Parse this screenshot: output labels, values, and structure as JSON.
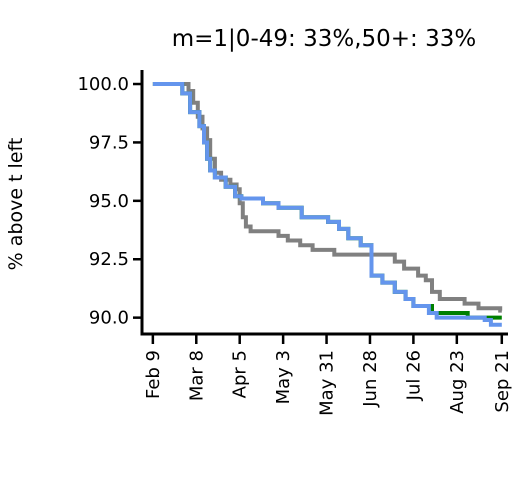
{
  "chart_data": {
    "type": "line",
    "title": "m=1|0-49: 33%,50+: 33%",
    "xlabel": "",
    "ylabel": "% above t left",
    "x_axis": "date",
    "xlim": [
      "2020-02-02",
      "2020-09-25"
    ],
    "ylim": [
      89.3,
      100.6
    ],
    "yticks": [
      {
        "value": 100.0,
        "label": "100.0"
      },
      {
        "value": 97.5,
        "label": "97.5"
      },
      {
        "value": 95.0,
        "label": "95.0"
      },
      {
        "value": 92.5,
        "label": "92.5"
      },
      {
        "value": 90.0,
        "label": "90.0"
      }
    ],
    "xticks": [
      {
        "value": "2020-02-09",
        "label": "Feb 9"
      },
      {
        "value": "2020-03-08",
        "label": "Mar 8"
      },
      {
        "value": "2020-04-05",
        "label": "Apr 5"
      },
      {
        "value": "2020-05-03",
        "label": "May 3"
      },
      {
        "value": "2020-05-31",
        "label": "May 31"
      },
      {
        "value": "2020-06-28",
        "label": "Jun 28"
      },
      {
        "value": "2020-07-26",
        "label": "Jul 26"
      },
      {
        "value": "2020-08-23",
        "label": "Aug 23"
      },
      {
        "value": "2020-09-21",
        "label": "Sep 21"
      }
    ],
    "grid": false,
    "legend": "none",
    "series": [
      {
        "color": "#808080",
        "step": true,
        "points": [
          [
            "2020-02-09",
            100.0
          ],
          [
            "2020-02-28",
            100.0
          ],
          [
            "2020-03-03",
            99.7
          ],
          [
            "2020-03-06",
            99.2
          ],
          [
            "2020-03-09",
            98.6
          ],
          [
            "2020-03-12",
            98.1
          ],
          [
            "2020-03-15",
            97.6
          ],
          [
            "2020-03-17",
            96.8
          ],
          [
            "2020-03-20",
            96.2
          ],
          [
            "2020-03-24",
            95.9
          ],
          [
            "2020-03-30",
            95.7
          ],
          [
            "2020-04-03",
            95.5
          ],
          [
            "2020-04-05",
            94.9
          ],
          [
            "2020-04-07",
            94.3
          ],
          [
            "2020-04-09",
            93.9
          ],
          [
            "2020-04-12",
            93.7
          ],
          [
            "2020-04-30",
            93.5
          ],
          [
            "2020-05-06",
            93.3
          ],
          [
            "2020-05-14",
            93.1
          ],
          [
            "2020-05-22",
            92.9
          ],
          [
            "2020-06-05",
            92.7
          ],
          [
            "2020-07-14",
            92.4
          ],
          [
            "2020-07-20",
            92.1
          ],
          [
            "2020-07-29",
            91.8
          ],
          [
            "2020-08-03",
            91.6
          ],
          [
            "2020-08-07",
            91.1
          ],
          [
            "2020-08-12",
            90.8
          ],
          [
            "2020-08-28",
            90.6
          ],
          [
            "2020-09-06",
            90.4
          ],
          [
            "2020-09-20",
            90.3
          ],
          [
            "2020-09-21",
            90.3
          ]
        ]
      },
      {
        "color": "#008000",
        "step": true,
        "points": [
          [
            "2020-02-09",
            100.0
          ],
          [
            "2020-02-25",
            100.0
          ],
          [
            "2020-02-28",
            99.6
          ],
          [
            "2020-03-04",
            98.8
          ],
          [
            "2020-03-10",
            98.2
          ],
          [
            "2020-03-13",
            97.5
          ],
          [
            "2020-03-15",
            96.8
          ],
          [
            "2020-03-17",
            96.3
          ],
          [
            "2020-03-20",
            96.0
          ],
          [
            "2020-03-27",
            95.6
          ],
          [
            "2020-04-02",
            95.2
          ],
          [
            "2020-04-06",
            95.1
          ],
          [
            "2020-04-20",
            94.9
          ],
          [
            "2020-04-30",
            94.7
          ],
          [
            "2020-05-15",
            94.3
          ],
          [
            "2020-06-01",
            94.1
          ],
          [
            "2020-06-08",
            93.8
          ],
          [
            "2020-06-14",
            93.4
          ],
          [
            "2020-06-22",
            93.1
          ],
          [
            "2020-06-29",
            91.8
          ],
          [
            "2020-07-06",
            91.5
          ],
          [
            "2020-07-14",
            91.1
          ],
          [
            "2020-07-21",
            90.8
          ],
          [
            "2020-07-26",
            90.5
          ],
          [
            "2020-08-07",
            90.2
          ],
          [
            "2020-08-30",
            90.0
          ],
          [
            "2020-09-21",
            90.0
          ]
        ]
      },
      {
        "color": "#6495ED",
        "step": true,
        "points": [
          [
            "2020-02-09",
            100.0
          ],
          [
            "2020-02-25",
            100.0
          ],
          [
            "2020-02-28",
            99.6
          ],
          [
            "2020-03-04",
            98.8
          ],
          [
            "2020-03-10",
            98.2
          ],
          [
            "2020-03-13",
            97.5
          ],
          [
            "2020-03-15",
            96.8
          ],
          [
            "2020-03-17",
            96.3
          ],
          [
            "2020-03-20",
            96.0
          ],
          [
            "2020-03-27",
            95.6
          ],
          [
            "2020-04-02",
            95.2
          ],
          [
            "2020-04-06",
            95.1
          ],
          [
            "2020-04-20",
            94.9
          ],
          [
            "2020-04-30",
            94.7
          ],
          [
            "2020-05-15",
            94.3
          ],
          [
            "2020-06-01",
            94.1
          ],
          [
            "2020-06-08",
            93.8
          ],
          [
            "2020-06-14",
            93.4
          ],
          [
            "2020-06-22",
            93.1
          ],
          [
            "2020-06-29",
            91.8
          ],
          [
            "2020-07-06",
            91.5
          ],
          [
            "2020-07-14",
            91.1
          ],
          [
            "2020-07-21",
            90.8
          ],
          [
            "2020-07-26",
            90.5
          ],
          [
            "2020-08-05",
            90.2
          ],
          [
            "2020-08-10",
            90.0
          ],
          [
            "2020-09-10",
            89.9
          ],
          [
            "2020-09-14",
            89.7
          ],
          [
            "2020-09-21",
            89.7
          ]
        ]
      }
    ]
  }
}
